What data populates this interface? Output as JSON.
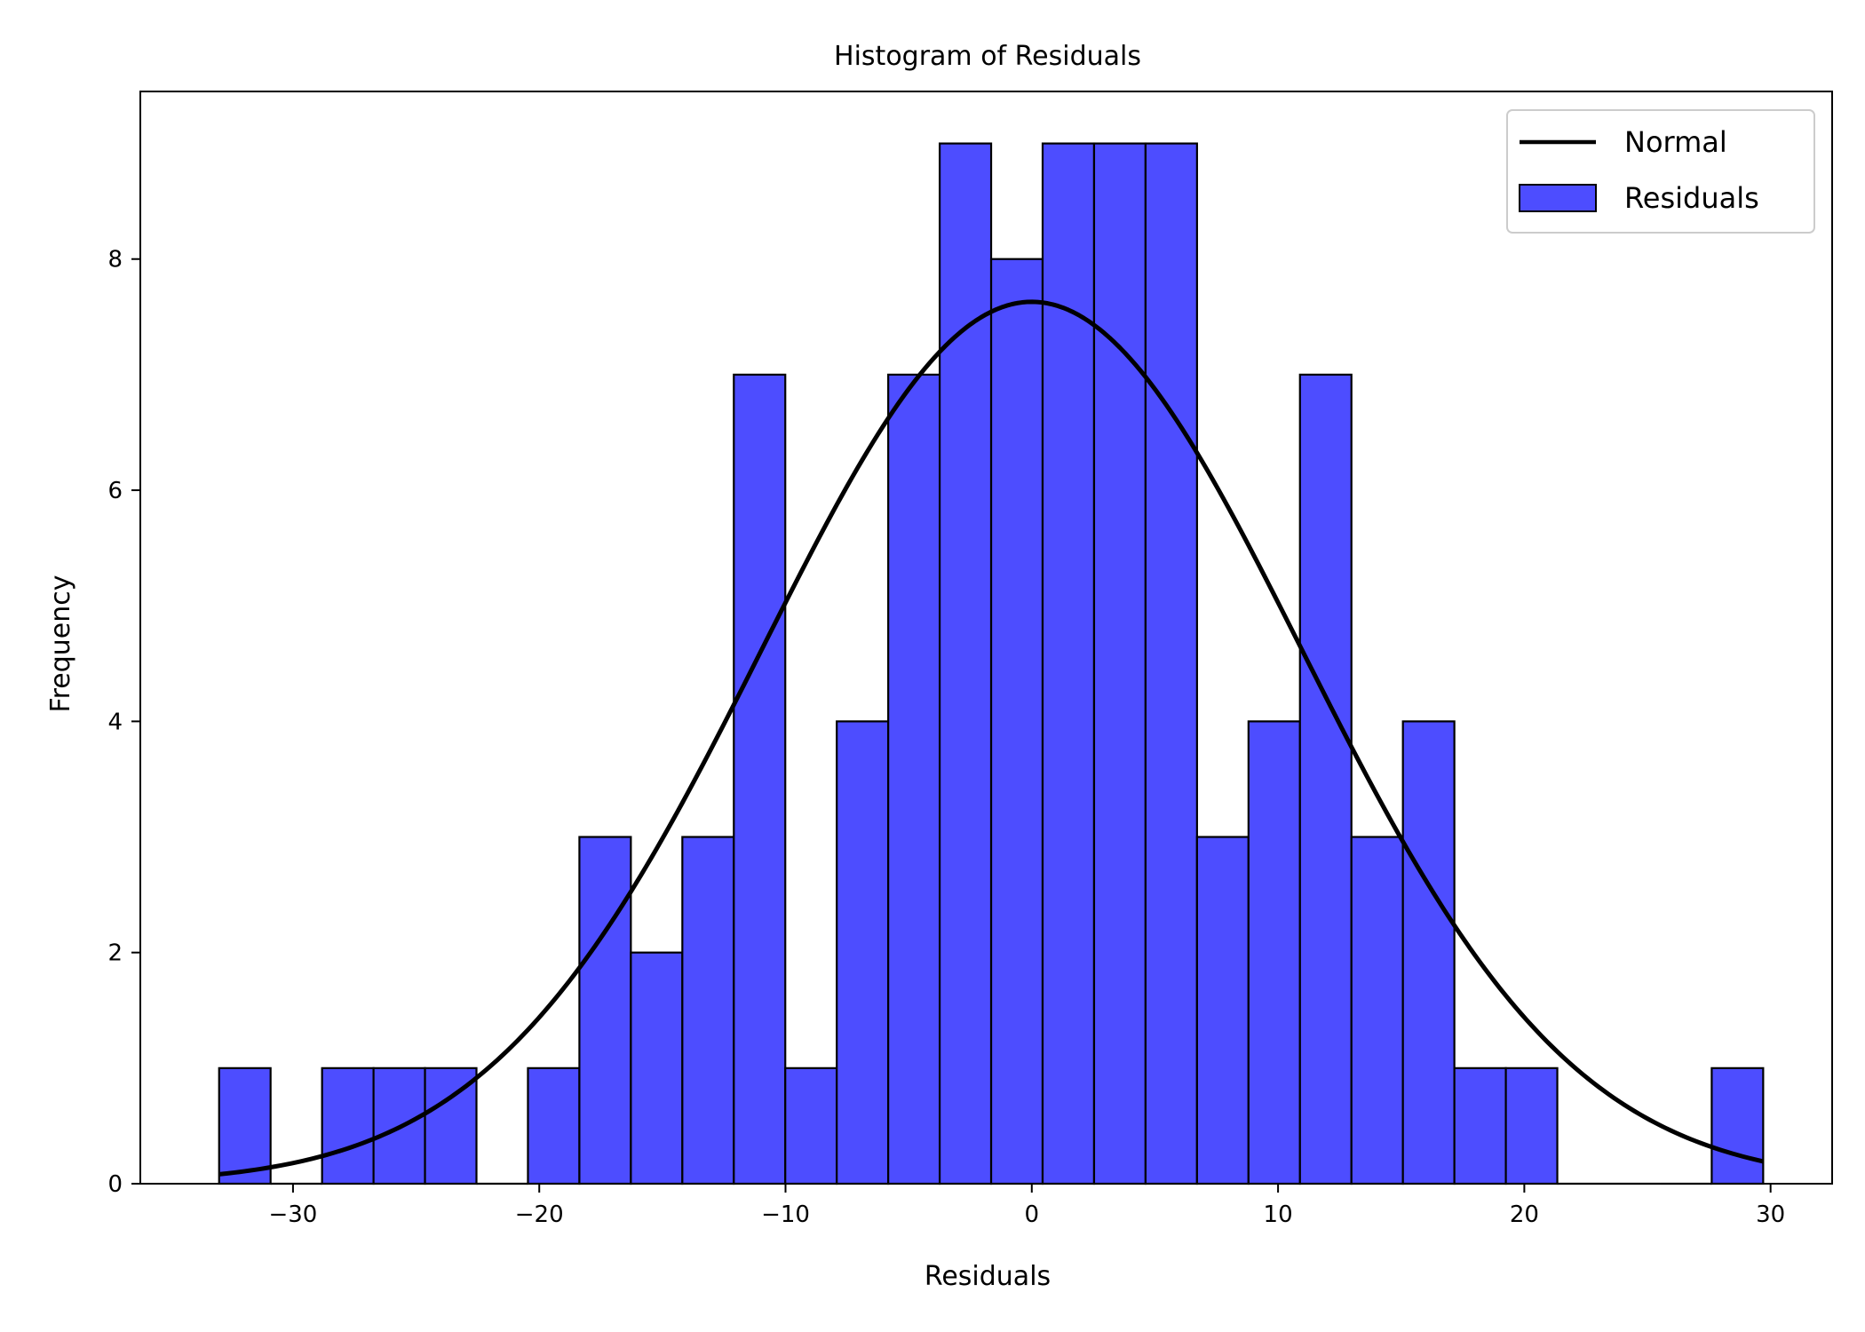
{
  "chart_data": {
    "type": "bar",
    "title": "Histogram of Residuals",
    "xlabel": "Residuals",
    "ylabel": "Frequency",
    "xlim": [
      -36.2,
      32.5
    ],
    "ylim": [
      0,
      9.45
    ],
    "xticks": [
      -30,
      -20,
      -10,
      0,
      10,
      20,
      30
    ],
    "xtick_labels": [
      "−30",
      "−20",
      "−10",
      "0",
      "10",
      "20",
      "30"
    ],
    "yticks": [
      0,
      2,
      4,
      6,
      8
    ],
    "ytick_labels": [
      "0",
      "2",
      "4",
      "6",
      "8"
    ],
    "grid": false,
    "legend_position": "top-right",
    "histogram": {
      "name": "Residuals",
      "bin_start": -33.0,
      "bin_width": 2.09,
      "counts": [
        1,
        0,
        1,
        1,
        1,
        0,
        1,
        3,
        2,
        3,
        7,
        1,
        4,
        7,
        9,
        8,
        9,
        9,
        9,
        3,
        4,
        7,
        3,
        4,
        1,
        1,
        0,
        0,
        0,
        1
      ],
      "fill_color": "#4d4dff",
      "edge_color": "#000000"
    },
    "normal_curve": {
      "name": "Normal",
      "mean": 0.0,
      "std": 10.95,
      "peak": 7.63,
      "x_range": [
        -33.0,
        29.7
      ],
      "color": "#000000"
    },
    "legend": [
      {
        "label": "Normal",
        "kind": "line",
        "color": "#000000"
      },
      {
        "label": "Residuals",
        "kind": "patch",
        "color": "#4d4dff"
      }
    ]
  }
}
